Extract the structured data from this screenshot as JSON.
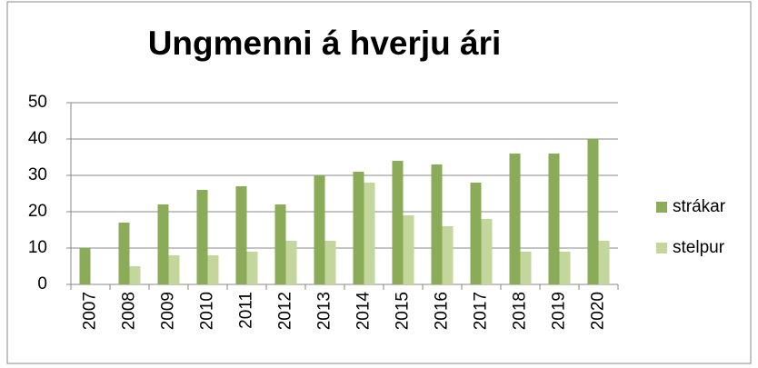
{
  "chart_data": {
    "type": "bar",
    "title": "Ungmenni á hverju ári",
    "categories": [
      "2007",
      "2008",
      "2009",
      "2010",
      "2011",
      "2012",
      "2013",
      "2014",
      "2015",
      "2016",
      "2017",
      "2018",
      "2019",
      "2020"
    ],
    "series": [
      {
        "name": "strákar",
        "color": "#8aab57",
        "values": [
          10,
          17,
          22,
          26,
          27,
          22,
          30,
          31,
          34,
          33,
          28,
          36,
          36,
          40
        ]
      },
      {
        "name": "stelpur",
        "color": "#c3d69b",
        "values": [
          0,
          5,
          8,
          8,
          9,
          12,
          12,
          28,
          19,
          16,
          18,
          9,
          9,
          12
        ]
      }
    ],
    "ylim": [
      0,
      50
    ],
    "yticks": [
      0,
      10,
      20,
      30,
      40,
      50
    ],
    "grid": true,
    "legend": "right"
  }
}
